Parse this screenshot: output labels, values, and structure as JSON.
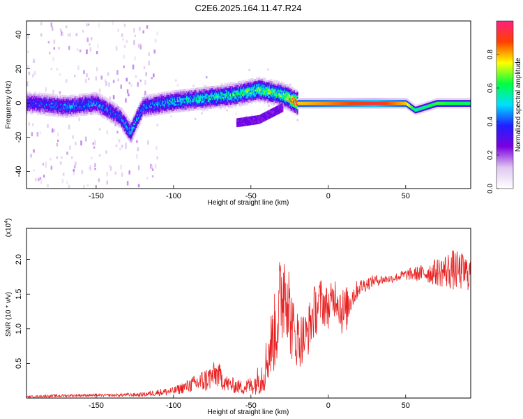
{
  "title": "C2E6.2025.164.11.47.R24",
  "chart_data": [
    {
      "type": "heatmap",
      "xlabel": "Height of straight line (km)",
      "ylabel": "Frequency (Hz)",
      "xlim": [
        -195,
        92
      ],
      "ylim": [
        -50,
        48
      ],
      "x_ticks": [
        -150,
        -100,
        -50,
        0,
        50
      ],
      "y_ticks": [
        40,
        20,
        0,
        -20,
        -40
      ],
      "grid": false,
      "colorbar": {
        "label": "Normalized spectral amplitude",
        "range": [
          0,
          1
        ],
        "ticks": [
          "0.0",
          "0.2",
          "0.4",
          "0.6",
          "0.8"
        ],
        "colors": [
          "#ffffff",
          "#e0c8f0",
          "#7b00e0",
          "#1f1fff",
          "#00e0ff",
          "#00ff40",
          "#ffff00",
          "#ff4000",
          "#ff2080"
        ]
      },
      "ridge": [
        {
          "x": -190,
          "f": 0,
          "amp": 0.35
        },
        {
          "x": -170,
          "f": -2,
          "amp": 0.4
        },
        {
          "x": -150,
          "f": 0,
          "amp": 0.4
        },
        {
          "x": -135,
          "f": -8,
          "amp": 0.35
        },
        {
          "x": -128,
          "f": -17,
          "amp": 0.45
        },
        {
          "x": -120,
          "f": -2,
          "amp": 0.4
        },
        {
          "x": -100,
          "f": 1,
          "amp": 0.45
        },
        {
          "x": -80,
          "f": 3,
          "amp": 0.5
        },
        {
          "x": -60,
          "f": 5,
          "amp": 0.55
        },
        {
          "x": -45,
          "f": 8,
          "amp": 0.6
        },
        {
          "x": -30,
          "f": 5,
          "amp": 0.6
        },
        {
          "x": -20,
          "f": 0,
          "amp": 0.85
        },
        {
          "x": 0,
          "f": 0,
          "amp": 0.9
        },
        {
          "x": 30,
          "f": 0,
          "amp": 1.0
        },
        {
          "x": 50,
          "f": 0,
          "amp": 0.85
        },
        {
          "x": 56,
          "f": -4,
          "amp": 0.6
        },
        {
          "x": 70,
          "f": 0,
          "amp": 0.7
        },
        {
          "x": 92,
          "f": 0,
          "amp": 0.65
        }
      ],
      "secondary_branch": [
        {
          "x": -60,
          "f": -11
        },
        {
          "x": -45,
          "f": -9
        },
        {
          "x": -30,
          "f": -2
        }
      ]
    },
    {
      "type": "line",
      "xlabel": "Height of straight line (km)",
      "ylabel": "SNR (10 * v/v)",
      "y_multiplier": "(x10",
      "y_multiplier_exp": "4",
      "xlim": [
        -195,
        92
      ],
      "ylim": [
        0,
        2.45
      ],
      "x_ticks": [
        -150,
        -100,
        -50,
        0,
        50
      ],
      "y_ticks": [
        0.5,
        1.0,
        1.5,
        2.0
      ],
      "y_tick_labels": [
        "0.5",
        "1.0",
        "1.5",
        "2.0"
      ],
      "grid": false,
      "series": [
        {
          "color": "#e82020",
          "x": [
            -195,
            -180,
            -160,
            -140,
            -120,
            -110,
            -100,
            -90,
            -80,
            -72,
            -65,
            -55,
            -48,
            -42,
            -38,
            -34,
            -30,
            -27,
            -25,
            -22,
            -18,
            -14,
            -10,
            -5,
            0,
            5,
            10,
            15,
            20,
            25,
            30,
            40,
            50,
            60,
            70,
            80,
            92
          ],
          "values": [
            0.02,
            0.03,
            0.04,
            0.04,
            0.05,
            0.08,
            0.1,
            0.18,
            0.25,
            0.35,
            0.2,
            0.15,
            0.2,
            0.35,
            0.7,
            1.0,
            1.5,
            1.8,
            1.2,
            0.9,
            0.85,
            0.9,
            1.2,
            1.4,
            1.3,
            1.5,
            1.2,
            1.45,
            1.6,
            1.65,
            1.7,
            1.72,
            1.78,
            1.8,
            1.82,
            1.85,
            1.8
          ],
          "noise": [
            0.01,
            0.02,
            0.02,
            0.02,
            0.03,
            0.05,
            0.06,
            0.1,
            0.18,
            0.2,
            0.12,
            0.1,
            0.15,
            0.3,
            0.45,
            0.6,
            0.8,
            0.9,
            0.6,
            0.45,
            0.4,
            0.35,
            0.4,
            0.35,
            0.3,
            0.3,
            0.4,
            0.2,
            0.12,
            0.1,
            0.08,
            0.06,
            0.08,
            0.12,
            0.2,
            0.3,
            0.25
          ]
        }
      ]
    }
  ]
}
